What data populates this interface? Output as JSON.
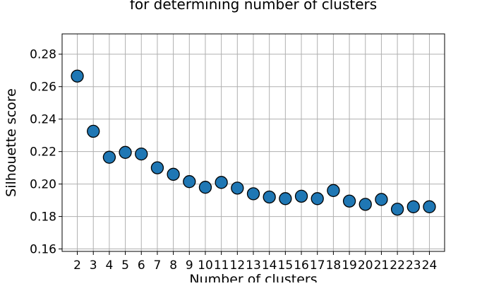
{
  "chart_data": {
    "type": "scatter",
    "title": "for determining number of clusters",
    "xlabel": "Number of clusters",
    "ylabel": "Silhouette score",
    "x": [
      2,
      3,
      4,
      5,
      6,
      7,
      8,
      9,
      10,
      11,
      12,
      13,
      14,
      15,
      16,
      17,
      18,
      19,
      20,
      21,
      22,
      23,
      24
    ],
    "series": [
      {
        "values": [
          0.2665,
          0.2325,
          0.2165,
          0.2195,
          0.2185,
          0.21,
          0.206,
          0.2015,
          0.198,
          0.201,
          0.1975,
          0.194,
          0.192,
          0.191,
          0.1925,
          0.191,
          0.196,
          0.1895,
          0.1875,
          0.1905,
          0.1845,
          0.186,
          0.186
        ],
        "color": "#1f77b4",
        "edge_color": "#000000"
      }
    ],
    "xticks": [
      "2",
      "3",
      "4",
      "5",
      "6",
      "7",
      "8",
      "9",
      "10",
      "11",
      "12",
      "13",
      "14",
      "15",
      "16",
      "17",
      "18",
      "19",
      "20",
      "21",
      "22",
      "23",
      "24"
    ],
    "yticks": [
      "0.16",
      "0.18",
      "0.20",
      "0.22",
      "0.24",
      "0.26",
      "0.28"
    ],
    "ylim": [
      0.1585,
      0.2925
    ],
    "xlim": [
      1.05,
      24.95
    ],
    "grid": true,
    "legend": "none"
  }
}
